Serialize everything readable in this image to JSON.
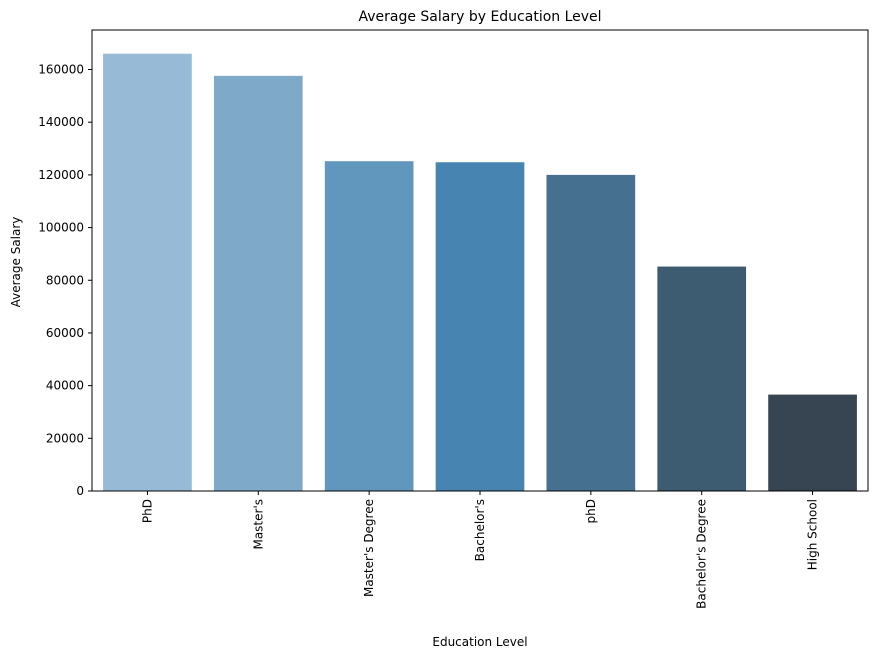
{
  "chart_data": {
    "type": "bar",
    "title": "Average Salary by Education Level",
    "xlabel": "Education Level",
    "ylabel": "Average Salary",
    "categories": [
      "PhD",
      "Master's",
      "Master's Degree",
      "Bachelor's",
      "phD",
      "Bachelor's Degree",
      "High School"
    ],
    "values": [
      166000,
      157600,
      125200,
      124800,
      120000,
      85200,
      36600
    ],
    "colors": [
      "#97bad6",
      "#7ea9c9",
      "#6297bd",
      "#4784b2",
      "#46708f",
      "#3d5b71",
      "#374552"
    ],
    "ylim": [
      0,
      175000
    ],
    "yticks": [
      0,
      20000,
      40000,
      60000,
      80000,
      100000,
      120000,
      140000,
      160000
    ],
    "ytick_labels": [
      "0",
      "20000",
      "40000",
      "60000",
      "80000",
      "100000",
      "120000",
      "140000",
      "160000"
    ],
    "grid": false,
    "legend": "none"
  }
}
